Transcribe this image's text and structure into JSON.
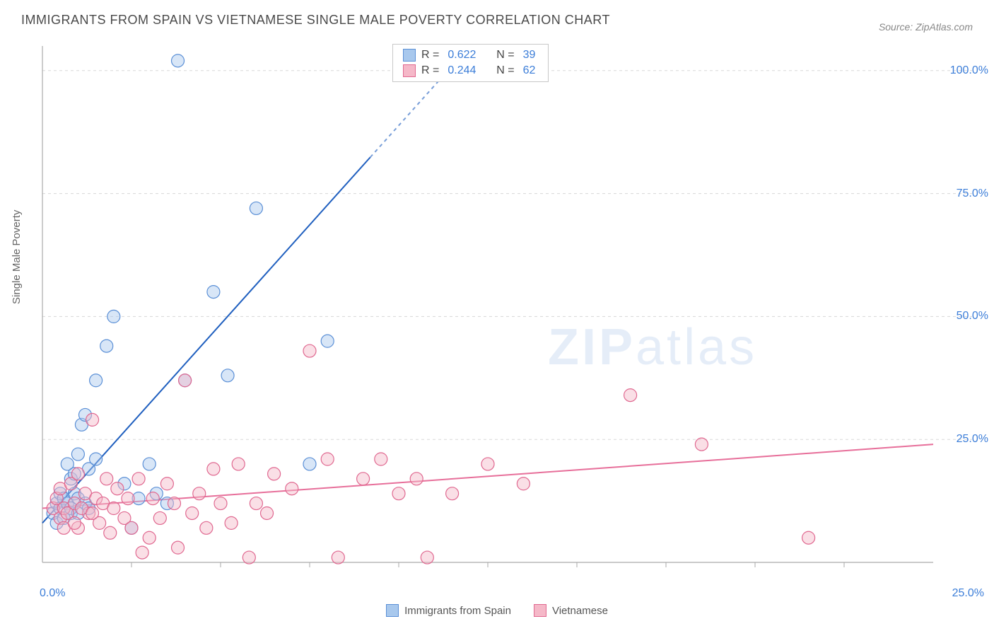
{
  "title": "IMMIGRANTS FROM SPAIN VS VIETNAMESE SINGLE MALE POVERTY CORRELATION CHART",
  "source": "Source: ZipAtlas.com",
  "y_axis_label": "Single Male Poverty",
  "watermark": {
    "bold": "ZIP",
    "light": "atlas"
  },
  "chart": {
    "type": "scatter",
    "xlim": [
      0,
      25
    ],
    "ylim": [
      0,
      105
    ],
    "x_corner_left": "0.0%",
    "x_corner_right": "25.0%",
    "y_ticks": [
      25,
      50,
      75,
      100
    ],
    "y_tick_labels": [
      "25.0%",
      "50.0%",
      "75.0%",
      "100.0%"
    ],
    "x_minor_ticks": [
      2.5,
      5,
      7.5,
      10,
      12.5,
      15,
      17.5,
      20,
      22.5
    ],
    "grid_color": "#d8d8d8",
    "axis_color": "#aaaaaa",
    "background_color": "#ffffff"
  },
  "series": [
    {
      "name": "Immigrants from Spain",
      "color_fill": "#a8c8ed",
      "color_stroke": "#5a8fd6",
      "marker_radius": 9,
      "fill_opacity": 0.45,
      "reg_line": {
        "x1": 0,
        "y1": 8,
        "x2": 12,
        "y2": 105,
        "solid_until_x": 9.2,
        "color": "#1f5fbf",
        "width": 2
      },
      "points": [
        [
          0.3,
          10
        ],
        [
          0.4,
          12
        ],
        [
          0.5,
          11
        ],
        [
          0.5,
          14
        ],
        [
          0.6,
          13
        ],
        [
          0.7,
          20
        ],
        [
          0.7,
          12
        ],
        [
          0.8,
          17
        ],
        [
          0.8,
          10
        ],
        [
          0.9,
          18
        ],
        [
          0.9,
          14
        ],
        [
          1.0,
          22
        ],
        [
          1.0,
          13
        ],
        [
          1.1,
          28
        ],
        [
          1.2,
          12
        ],
        [
          1.2,
          30
        ],
        [
          1.3,
          19
        ],
        [
          1.5,
          21
        ],
        [
          1.5,
          37
        ],
        [
          1.8,
          44
        ],
        [
          2.0,
          50
        ],
        [
          2.3,
          16
        ],
        [
          2.5,
          7
        ],
        [
          2.7,
          13
        ],
        [
          3.0,
          20
        ],
        [
          3.2,
          14
        ],
        [
          3.5,
          12
        ],
        [
          3.8,
          102
        ],
        [
          4.0,
          37
        ],
        [
          4.8,
          55
        ],
        [
          5.2,
          38
        ],
        [
          6.0,
          72
        ],
        [
          7.5,
          20
        ],
        [
          8.0,
          45
        ],
        [
          0.4,
          8
        ],
        [
          0.6,
          9
        ],
        [
          0.8,
          11
        ],
        [
          1.0,
          10
        ],
        [
          1.3,
          11
        ]
      ]
    },
    {
      "name": "Vietnamese",
      "color_fill": "#f5b8c8",
      "color_stroke": "#e06890",
      "marker_radius": 9,
      "fill_opacity": 0.45,
      "reg_line": {
        "x1": 0,
        "y1": 11,
        "x2": 25,
        "y2": 24,
        "color": "#e76f9a",
        "width": 2
      },
      "points": [
        [
          0.3,
          11
        ],
        [
          0.4,
          13
        ],
        [
          0.5,
          9
        ],
        [
          0.5,
          15
        ],
        [
          0.6,
          11
        ],
        [
          0.7,
          10
        ],
        [
          0.8,
          16
        ],
        [
          0.9,
          12
        ],
        [
          1.0,
          18
        ],
        [
          1.0,
          7
        ],
        [
          1.2,
          14
        ],
        [
          1.3,
          10
        ],
        [
          1.4,
          29
        ],
        [
          1.5,
          13
        ],
        [
          1.6,
          8
        ],
        [
          1.7,
          12
        ],
        [
          1.8,
          17
        ],
        [
          1.9,
          6
        ],
        [
          2.0,
          11
        ],
        [
          2.1,
          15
        ],
        [
          2.3,
          9
        ],
        [
          2.4,
          13
        ],
        [
          2.5,
          7
        ],
        [
          2.7,
          17
        ],
        [
          2.8,
          2
        ],
        [
          3.0,
          5
        ],
        [
          3.1,
          13
        ],
        [
          3.3,
          9
        ],
        [
          3.5,
          16
        ],
        [
          3.7,
          12
        ],
        [
          3.8,
          3
        ],
        [
          4.0,
          37
        ],
        [
          4.2,
          10
        ],
        [
          4.4,
          14
        ],
        [
          4.6,
          7
        ],
        [
          4.8,
          19
        ],
        [
          5.0,
          12
        ],
        [
          5.3,
          8
        ],
        [
          5.5,
          20
        ],
        [
          5.8,
          1
        ],
        [
          6.0,
          12
        ],
        [
          6.3,
          10
        ],
        [
          6.5,
          18
        ],
        [
          7.0,
          15
        ],
        [
          7.5,
          43
        ],
        [
          8.0,
          21
        ],
        [
          8.3,
          1
        ],
        [
          9.0,
          17
        ],
        [
          9.5,
          21
        ],
        [
          10.0,
          14
        ],
        [
          10.5,
          17
        ],
        [
          10.8,
          1
        ],
        [
          11.5,
          14
        ],
        [
          12.5,
          20
        ],
        [
          13.5,
          16
        ],
        [
          16.5,
          34
        ],
        [
          18.5,
          24
        ],
        [
          21.5,
          5
        ],
        [
          0.6,
          7
        ],
        [
          0.9,
          8
        ],
        [
          1.1,
          11
        ],
        [
          1.4,
          10
        ]
      ]
    }
  ],
  "legend_top": [
    {
      "swatch_fill": "#a8c8ed",
      "swatch_stroke": "#5a8fd6",
      "r": "0.622",
      "n": "39"
    },
    {
      "swatch_fill": "#f5b8c8",
      "swatch_stroke": "#e06890",
      "r": "0.244",
      "n": "62"
    }
  ],
  "legend_labels": {
    "r_prefix": "R =",
    "n_prefix": "N ="
  },
  "legend_bottom": [
    {
      "swatch_fill": "#a8c8ed",
      "swatch_stroke": "#5a8fd6",
      "label": "Immigrants from Spain"
    },
    {
      "swatch_fill": "#f5b8c8",
      "swatch_stroke": "#e06890",
      "label": "Vietnamese"
    }
  ]
}
